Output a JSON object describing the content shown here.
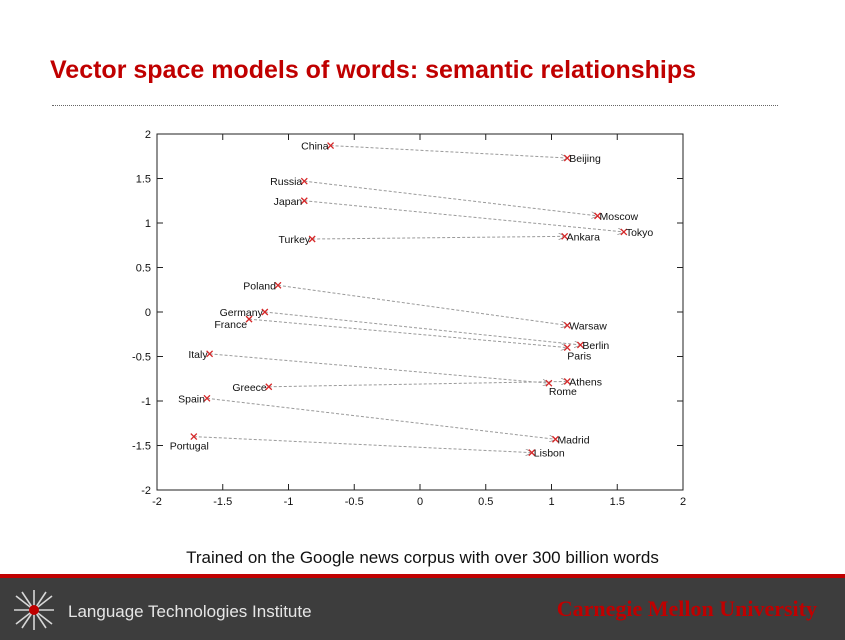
{
  "slide": {
    "title": "Vector space models of words: semantic relationships",
    "caption": "Trained on the Google news corpus with over 300 billion words"
  },
  "footer": {
    "institute": "Language Technologies Institute",
    "university": "Carnegie Mellon University"
  },
  "colors": {
    "title": "#c00000",
    "accent_line": "#c00000",
    "footer_bg": "#3d3d3d",
    "point_marker": "#d62728",
    "arrow": "#9a9a9a"
  },
  "icons": {
    "logo": "lti-network-logo-icon"
  },
  "chart_data": {
    "type": "scatter",
    "xlim": [
      -2,
      2
    ],
    "ylim": [
      -2,
      2
    ],
    "xticks": [
      "-2",
      "-1.5",
      "-1",
      "-0.5",
      "0",
      "0.5",
      "1",
      "1.5",
      "2"
    ],
    "yticks": [
      "2",
      "1.5",
      "1",
      "0.5",
      "0",
      "-0.5",
      "-1",
      "-1.5",
      "-2"
    ],
    "grid": false,
    "points": [
      {
        "label": "China",
        "x": -0.68,
        "y": 1.87
      },
      {
        "label": "Beijing",
        "x": 1.12,
        "y": 1.73
      },
      {
        "label": "Russia",
        "x": -0.88,
        "y": 1.47
      },
      {
        "label": "Japan",
        "x": -0.88,
        "y": 1.25
      },
      {
        "label": "Moscow",
        "x": 1.35,
        "y": 1.08
      },
      {
        "label": "Tokyo",
        "x": 1.55,
        "y": 0.9
      },
      {
        "label": "Turkey",
        "x": -0.82,
        "y": 0.82
      },
      {
        "label": "Ankara",
        "x": 1.1,
        "y": 0.85
      },
      {
        "label": "Poland",
        "x": -1.08,
        "y": 0.3
      },
      {
        "label": "Germany",
        "x": -1.18,
        "y": 0.0
      },
      {
        "label": "France",
        "x": -1.3,
        "y": -0.08
      },
      {
        "label": "Warsaw",
        "x": 1.12,
        "y": -0.15
      },
      {
        "label": "Berlin",
        "x": 1.22,
        "y": -0.37
      },
      {
        "label": "Paris",
        "x": 1.12,
        "y": -0.4
      },
      {
        "label": "Italy",
        "x": -1.6,
        "y": -0.47
      },
      {
        "label": "Greece",
        "x": -1.15,
        "y": -0.84
      },
      {
        "label": "Athens",
        "x": 1.12,
        "y": -0.78
      },
      {
        "label": "Rome",
        "x": 0.98,
        "y": -0.8
      },
      {
        "label": "Spain",
        "x": -1.62,
        "y": -0.97
      },
      {
        "label": "Madrid",
        "x": 1.03,
        "y": -1.43
      },
      {
        "label": "Portugal",
        "x": -1.72,
        "y": -1.4
      },
      {
        "label": "Lisbon",
        "x": 0.85,
        "y": -1.58
      }
    ],
    "arrows": [
      {
        "from": "China",
        "to": "Beijing"
      },
      {
        "from": "Russia",
        "to": "Moscow"
      },
      {
        "from": "Japan",
        "to": "Tokyo"
      },
      {
        "from": "Turkey",
        "to": "Ankara"
      },
      {
        "from": "Poland",
        "to": "Warsaw"
      },
      {
        "from": "Germany",
        "to": "Berlin"
      },
      {
        "from": "France",
        "to": "Paris"
      },
      {
        "from": "Italy",
        "to": "Rome"
      },
      {
        "from": "Greece",
        "to": "Athens"
      },
      {
        "from": "Spain",
        "to": "Madrid"
      },
      {
        "from": "Portugal",
        "to": "Lisbon"
      }
    ]
  }
}
